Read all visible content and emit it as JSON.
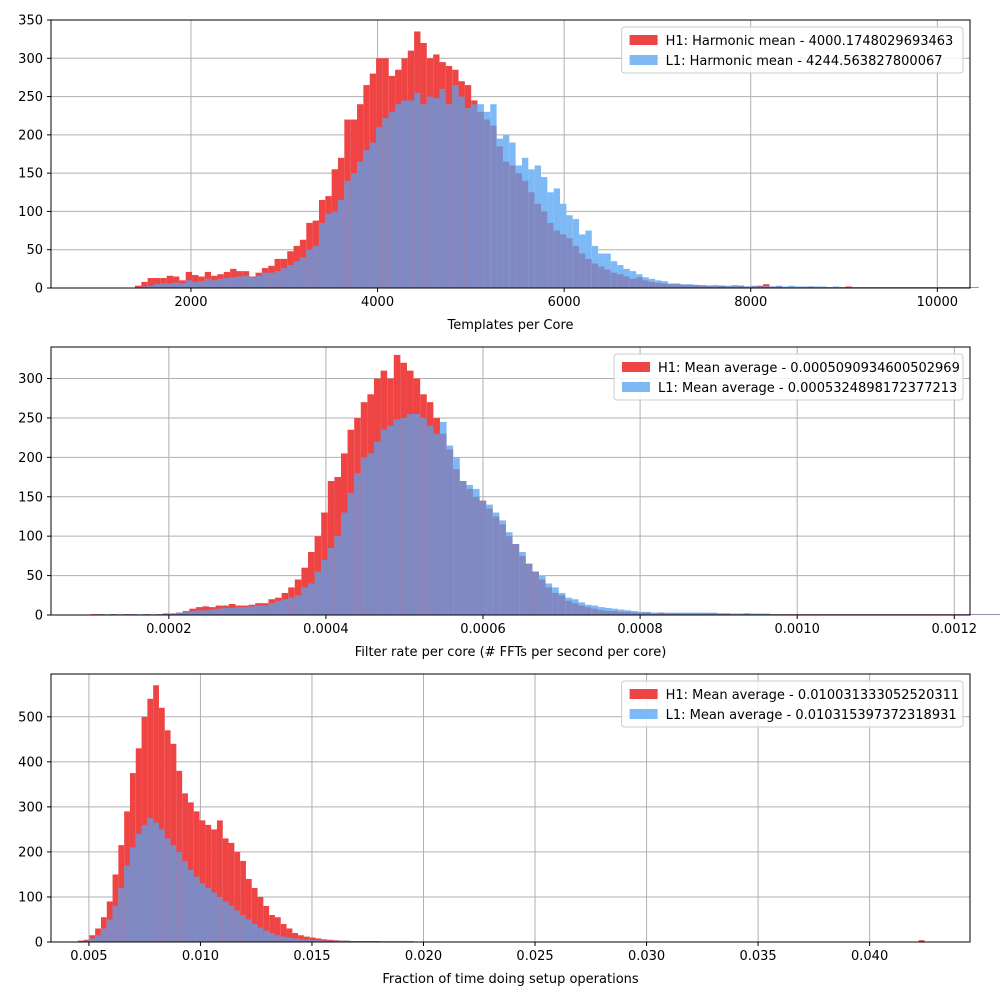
{
  "colors": {
    "h1": "#ef4444",
    "l1": "#7cb9f5",
    "overlap": "#8189c3",
    "grid": "#b0b0b0",
    "axis": "#000000"
  },
  "chart_data": [
    {
      "type": "histogram",
      "xlabel": "Templates per Core",
      "ylabel": "",
      "xlim": [
        500,
        10350
      ],
      "ylim": [
        0,
        350
      ],
      "xticks": [
        2000,
        4000,
        6000,
        8000,
        10000
      ],
      "yticks": [
        0,
        50,
        100,
        150,
        200,
        250,
        300,
        350
      ],
      "grid": true,
      "legend_position": "top-right",
      "bin_start": 1400,
      "bin_width": 68,
      "series": [
        {
          "name": "H1: Harmonic mean  - 4000.1748029693463",
          "color": "h1",
          "values": [
            3,
            8,
            13,
            13,
            13,
            16,
            15,
            10,
            21,
            17,
            15,
            21,
            16,
            18,
            21,
            25,
            22,
            22,
            15,
            20,
            26,
            29,
            38,
            38,
            48,
            55,
            63,
            85,
            88,
            115,
            120,
            155,
            170,
            220,
            220,
            240,
            265,
            280,
            300,
            300,
            277,
            285,
            300,
            310,
            335,
            320,
            300,
            305,
            295,
            290,
            285,
            270,
            265,
            245,
            230,
            220,
            212,
            185,
            165,
            160,
            150,
            140,
            125,
            110,
            100,
            85,
            75,
            70,
            65,
            55,
            45,
            38,
            32,
            28,
            24,
            20,
            18,
            15,
            12,
            14,
            10,
            8,
            7,
            6,
            5,
            5,
            4,
            4,
            4,
            3,
            3,
            2,
            3,
            2,
            2,
            3,
            2,
            2,
            3,
            5,
            2,
            2,
            1,
            1,
            1,
            1,
            2,
            1,
            1,
            1,
            1,
            1,
            2,
            1,
            1,
            1,
            1,
            1,
            1,
            1,
            1,
            1,
            1,
            1,
            1,
            1,
            1,
            1,
            1,
            1,
            1,
            1,
            1
          ]
        },
        {
          "name": "L1: Harmonic mean  - 4244.563827800067",
          "color": "l1",
          "values": [
            1,
            2,
            3,
            5,
            6,
            6,
            7,
            6,
            10,
            8,
            9,
            12,
            10,
            12,
            13,
            14,
            15,
            16,
            14,
            16,
            20,
            20,
            22,
            26,
            30,
            35,
            40,
            50,
            55,
            85,
            97,
            100,
            115,
            140,
            150,
            165,
            180,
            190,
            210,
            222,
            230,
            240,
            245,
            245,
            255,
            240,
            250,
            248,
            260,
            240,
            265,
            250,
            235,
            240,
            240,
            230,
            240,
            195,
            200,
            190,
            160,
            170,
            155,
            160,
            145,
            125,
            130,
            110,
            95,
            90,
            70,
            75,
            55,
            45,
            45,
            35,
            30,
            25,
            22,
            18,
            14,
            12,
            10,
            9,
            6,
            6,
            5,
            5,
            4,
            4,
            3,
            4,
            3,
            3,
            4,
            3,
            2,
            3,
            2,
            3,
            2,
            3,
            2,
            3,
            2,
            2,
            2,
            2,
            2,
            1,
            2,
            1,
            1,
            1,
            1,
            1,
            1,
            1,
            1,
            1,
            1,
            1,
            1,
            1,
            1,
            1,
            1,
            1,
            1,
            1,
            1,
            1,
            1
          ]
        }
      ]
    },
    {
      "type": "histogram",
      "xlabel": "Filter rate per core (# FFTs per second per core)",
      "ylabel": "",
      "xlim": [
        5e-05,
        0.00122
      ],
      "ylim": [
        0,
        340
      ],
      "xticks": [
        0.0002,
        0.0004,
        0.0006,
        0.0008,
        0.001,
        0.0012
      ],
      "xticklabels": [
        "0.0002",
        "0.0004",
        "0.0006",
        "0.0008",
        "0.0010",
        "0.0012"
      ],
      "yticks": [
        0,
        50,
        100,
        150,
        200,
        250,
        300
      ],
      "grid": true,
      "legend_position": "top-right",
      "bin_start": 0.0001,
      "bin_width": 8.4e-06,
      "series": [
        {
          "name": "H1: Mean average - 0.0005090934600502969",
          "color": "h1",
          "values": [
            1,
            1,
            0,
            1,
            0,
            1,
            1,
            0,
            1,
            0,
            1,
            2,
            2,
            3,
            5,
            8,
            10,
            11,
            10,
            12,
            12,
            14,
            12,
            12,
            13,
            15,
            15,
            20,
            22,
            28,
            35,
            45,
            60,
            80,
            100,
            130,
            170,
            175,
            205,
            235,
            250,
            270,
            280,
            300,
            310,
            300,
            330,
            320,
            310,
            300,
            280,
            270,
            250,
            230,
            210,
            185,
            170,
            160,
            150,
            145,
            135,
            125,
            115,
            100,
            90,
            75,
            65,
            55,
            45,
            35,
            28,
            25,
            18,
            15,
            12,
            10,
            8,
            6,
            5,
            5,
            4,
            4,
            3,
            3,
            3,
            2,
            3,
            2,
            2,
            2,
            2,
            2,
            2,
            2,
            2,
            2,
            2,
            1,
            1,
            2,
            1,
            1,
            1,
            1,
            1,
            1,
            1,
            1,
            1,
            1,
            1,
            1,
            1,
            1,
            1,
            1,
            1,
            1,
            1,
            1,
            1,
            1,
            1,
            1,
            1,
            1,
            1,
            1,
            1,
            1,
            1,
            1,
            1,
            1,
            1,
            1,
            1,
            1,
            1,
            1
          ]
        },
        {
          "name": "L1: Mean average - 0.0005324898172377213",
          "color": "l1",
          "values": [
            0,
            1,
            1,
            1,
            1,
            1,
            1,
            1,
            1,
            1,
            1,
            1,
            2,
            3,
            4,
            5,
            6,
            6,
            7,
            8,
            9,
            9,
            10,
            10,
            11,
            12,
            12,
            15,
            18,
            20,
            22,
            25,
            35,
            40,
            55,
            70,
            85,
            100,
            130,
            155,
            180,
            200,
            205,
            220,
            235,
            240,
            248,
            250,
            255,
            255,
            250,
            240,
            230,
            245,
            215,
            200,
            170,
            165,
            160,
            145,
            140,
            130,
            120,
            105,
            90,
            80,
            65,
            55,
            50,
            40,
            35,
            28,
            22,
            20,
            16,
            13,
            12,
            10,
            9,
            8,
            7,
            6,
            5,
            4,
            4,
            3,
            3,
            3,
            3,
            3,
            3,
            3,
            3,
            3,
            3,
            2,
            2,
            2,
            2,
            2,
            2,
            2,
            2,
            1,
            1,
            1,
            1,
            1,
            1,
            1,
            1,
            1,
            1,
            1,
            1,
            1,
            1,
            1,
            1,
            1,
            1,
            1,
            1,
            1,
            1,
            1,
            1,
            1,
            1,
            1,
            1,
            1,
            1,
            1,
            1,
            1,
            1,
            1,
            1,
            1
          ]
        }
      ]
    },
    {
      "type": "histogram",
      "xlabel": "Fraction of time doing setup operations",
      "ylabel": "",
      "xlim": [
        0.0033,
        0.0445
      ],
      "ylim": [
        0,
        595
      ],
      "xticks": [
        0.005,
        0.01,
        0.015,
        0.02,
        0.025,
        0.03,
        0.035,
        0.04
      ],
      "xticklabels": [
        "0.005",
        "0.010",
        "0.015",
        "0.020",
        "0.025",
        "0.030",
        "0.035",
        "0.040"
      ],
      "yticks": [
        0,
        100,
        200,
        300,
        400,
        500
      ],
      "grid": true,
      "legend_position": "top-right",
      "bin_start": 0.0045,
      "bin_width": 0.00026,
      "series": [
        {
          "name": "H1: Mean average - 0.010031333052520311",
          "color": "h1",
          "values": [
            3,
            5,
            15,
            30,
            55,
            90,
            150,
            215,
            290,
            375,
            430,
            500,
            540,
            570,
            520,
            470,
            440,
            380,
            330,
            310,
            290,
            270,
            260,
            250,
            270,
            230,
            220,
            200,
            180,
            140,
            120,
            100,
            80,
            60,
            55,
            40,
            30,
            20,
            15,
            12,
            10,
            8,
            6,
            5,
            4,
            3,
            3,
            2,
            2,
            2,
            2,
            2,
            1,
            1,
            1,
            1,
            1,
            1,
            1,
            1,
            1,
            1,
            1,
            1,
            1,
            1,
            1,
            1,
            1,
            1,
            1,
            1,
            1,
            1,
            1,
            1,
            1,
            1,
            1,
            1,
            1,
            1,
            1,
            1,
            1,
            1,
            1,
            1,
            1,
            1,
            1,
            1,
            1,
            1,
            1,
            1,
            1,
            1,
            1,
            1,
            1,
            1,
            1,
            1,
            1,
            1,
            1,
            1,
            1,
            1,
            1,
            1,
            1,
            1,
            1,
            1,
            1,
            1,
            1,
            1,
            1,
            1,
            1,
            1,
            1,
            1,
            1,
            1,
            1,
            1,
            1,
            1,
            1,
            1,
            1,
            1,
            1,
            1,
            1,
            1,
            1,
            1,
            1,
            1,
            1,
            4
          ]
        },
        {
          "name": "L1: Mean average - 0.010315397372318931",
          "color": "l1",
          "values": [
            1,
            3,
            8,
            15,
            30,
            50,
            80,
            120,
            170,
            210,
            240,
            260,
            275,
            265,
            250,
            230,
            215,
            200,
            180,
            160,
            145,
            130,
            120,
            110,
            100,
            90,
            80,
            70,
            60,
            50,
            40,
            32,
            25,
            20,
            15,
            12,
            10,
            8,
            6,
            5,
            4,
            4,
            3,
            3,
            3,
            3,
            3,
            2,
            2,
            2,
            2,
            2,
            2,
            2,
            2,
            2,
            2,
            2,
            1,
            1,
            1,
            1,
            1,
            1,
            1,
            1,
            1,
            1,
            1,
            1,
            1,
            1,
            1,
            1,
            1,
            1,
            1,
            1,
            1,
            1,
            1,
            1,
            1,
            1,
            1,
            1,
            1,
            1,
            1,
            1,
            1,
            1,
            1,
            1,
            1,
            1,
            1,
            1,
            1,
            1,
            1,
            1,
            1,
            1,
            1,
            1,
            1,
            1,
            1,
            1,
            1,
            1,
            1,
            1,
            1,
            1,
            1,
            1,
            1,
            1,
            1,
            1,
            1,
            1,
            1,
            1,
            1,
            1,
            1,
            1,
            1,
            1,
            1,
            1,
            1,
            1,
            1,
            1,
            1,
            1,
            1,
            1,
            1,
            1,
            1,
            0
          ]
        }
      ]
    }
  ]
}
